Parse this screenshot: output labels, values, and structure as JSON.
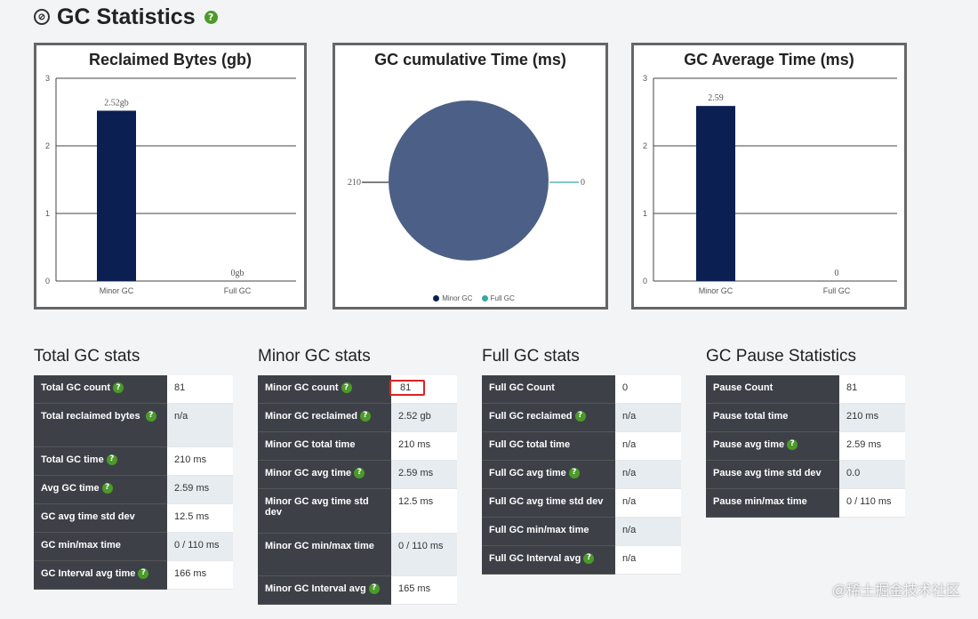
{
  "header": {
    "title": "GC Statistics",
    "help": "?"
  },
  "charts": {
    "reclaimed": {
      "title": "Reclaimed Bytes (gb)",
      "ticks": [
        "0",
        "1",
        "2",
        "3"
      ],
      "categories": [
        "Minor GC",
        "Full GC"
      ],
      "labels": [
        "2.52gb",
        "0gb"
      ]
    },
    "cumulative": {
      "title": "GC cumulative Time (ms)",
      "labels": [
        "210",
        "0"
      ],
      "legend": [
        "Minor GC",
        "Full GC"
      ],
      "colors": [
        "#0b1f53",
        "#3aa6a3"
      ]
    },
    "average": {
      "title": "GC Average Time (ms)",
      "ticks": [
        "0",
        "1",
        "2",
        "3"
      ],
      "categories": [
        "Minor GC",
        "Full GC"
      ],
      "labels": [
        "2.59",
        "0"
      ]
    }
  },
  "chart_data": [
    {
      "type": "bar",
      "title": "Reclaimed Bytes (gb)",
      "categories": [
        "Minor GC",
        "Full GC"
      ],
      "values": [
        2.52,
        0
      ],
      "ylim": [
        0,
        3
      ]
    },
    {
      "type": "pie",
      "title": "GC cumulative Time (ms)",
      "categories": [
        "Minor GC",
        "Full GC"
      ],
      "values": [
        210,
        0
      ]
    },
    {
      "type": "bar",
      "title": "GC Average Time (ms)",
      "categories": [
        "Minor GC",
        "Full GC"
      ],
      "values": [
        2.59,
        0
      ],
      "ylim": [
        0,
        3
      ]
    }
  ],
  "tables": {
    "total": {
      "title": "Total GC stats",
      "rows": [
        {
          "k": "Total GC count",
          "v": "81"
        },
        {
          "k": "Total reclaimed bytes",
          "v": "n/a"
        },
        {
          "k": "Total GC time",
          "v": "210 ms"
        },
        {
          "k": "Avg GC time",
          "v": "2.59 ms"
        },
        {
          "k": "GC avg time std dev",
          "v": "12.5 ms"
        },
        {
          "k": "GC min/max time",
          "v": "0 / 110 ms"
        },
        {
          "k": "GC Interval avg time",
          "v": "166 ms"
        }
      ]
    },
    "minor": {
      "title": "Minor GC stats",
      "rows": [
        {
          "k": "Minor GC count",
          "v": "81"
        },
        {
          "k": "Minor GC reclaimed",
          "v": "2.52 gb"
        },
        {
          "k": "Minor GC total time",
          "v": "210 ms"
        },
        {
          "k": "Minor GC avg time",
          "v": "2.59 ms"
        },
        {
          "k": "Minor GC avg time std dev",
          "v": "12.5 ms"
        },
        {
          "k": "Minor GC min/max time",
          "v": "0 / 110 ms"
        },
        {
          "k": "Minor GC Interval avg",
          "v": "165 ms"
        }
      ]
    },
    "full": {
      "title": "Full GC stats",
      "rows": [
        {
          "k": "Full GC Count",
          "v": "0"
        },
        {
          "k": "Full GC reclaimed",
          "v": "n/a"
        },
        {
          "k": "Full GC total time",
          "v": "n/a"
        },
        {
          "k": "Full GC avg time",
          "v": "n/a"
        },
        {
          "k": "Full GC avg time std dev",
          "v": "n/a"
        },
        {
          "k": "Full GC min/max time",
          "v": "n/a"
        },
        {
          "k": "Full GC Interval avg",
          "v": "n/a"
        }
      ]
    },
    "pause": {
      "title": "GC Pause Statistics",
      "rows": [
        {
          "k": "Pause Count",
          "v": "81"
        },
        {
          "k": "Pause total time",
          "v": "210 ms"
        },
        {
          "k": "Pause avg time",
          "v": "2.59 ms"
        },
        {
          "k": "Pause avg time std dev",
          "v": "0.0"
        },
        {
          "k": "Pause min/max time",
          "v": "0 / 110 ms"
        }
      ]
    }
  },
  "watermark": "@稀土掘金技术社区",
  "colors": {
    "bar": "#0b1f53",
    "pie": "#4c5f87",
    "table_key_bg": "#3d4147",
    "table_alt_bg": "#e6ecf0",
    "help_icon": "#4c9a2a",
    "highlight": "#dd2222"
  }
}
